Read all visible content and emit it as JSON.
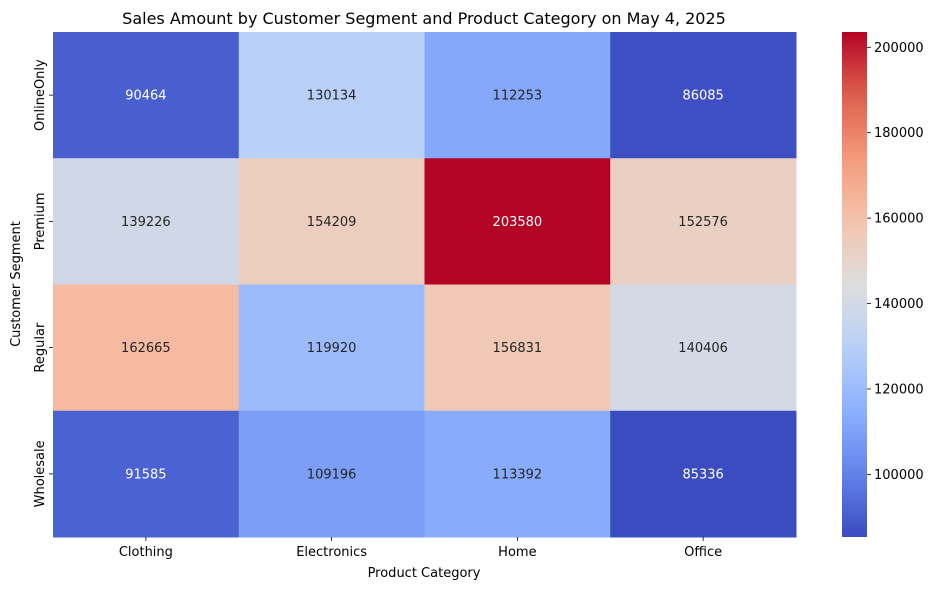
{
  "chart_data": {
    "type": "heatmap",
    "title": "Sales Amount by Customer Segment and Product Category on May 4, 2025",
    "xlabel": "Product Category",
    "ylabel": "Customer Segment",
    "x_categories": [
      "Clothing",
      "Electronics",
      "Home",
      "Office"
    ],
    "y_categories": [
      "OnlineOnly",
      "Premium",
      "Regular",
      "Wholesale"
    ],
    "values": [
      [
        90464,
        130134,
        112253,
        86085
      ],
      [
        139226,
        154209,
        203580,
        152576
      ],
      [
        162665,
        119920,
        156831,
        140406
      ],
      [
        91585,
        109196,
        113392,
        85336
      ]
    ],
    "colorscale": "coolwarm",
    "colorbar": {
      "min": 85336,
      "max": 203580,
      "ticks": [
        100000,
        120000,
        140000,
        160000,
        180000,
        200000
      ],
      "tick_labels": [
        "100000",
        "120000",
        "140000",
        "160000",
        "180000",
        "200000"
      ]
    },
    "annotations": true
  }
}
